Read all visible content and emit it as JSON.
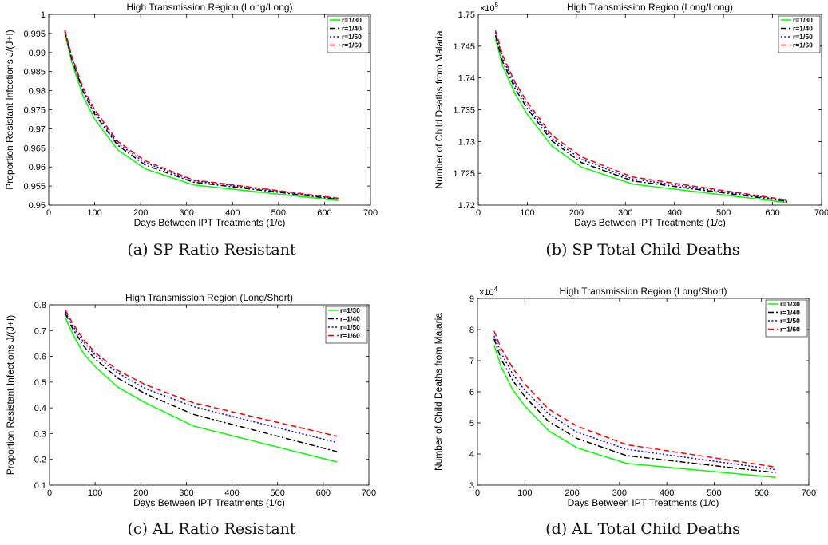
{
  "chart_data": [
    {
      "type": "line",
      "title": "High Transmission Region (Long/Long)",
      "xlabel": "Days Between IPT Treatments (1/c)",
      "ylabel": "Proportion Resistant Infections J/(J+I)",
      "xlim": [
        0,
        700
      ],
      "ylim": [
        0.95,
        1.0
      ],
      "xticks": [
        "0",
        "100",
        "200",
        "300",
        "400",
        "500",
        "600",
        "700"
      ],
      "yticks": [
        "0.95",
        "0.955",
        "0.96",
        "0.965",
        "0.97",
        "0.975",
        "0.98",
        "0.985",
        "0.99",
        "0.995",
        "1"
      ],
      "y_exponent": "",
      "legend_position": "top-right",
      "caption": "(a) SP Ratio Resistant",
      "x": [
        35,
        50,
        75,
        100,
        150,
        210,
        315,
        630
      ],
      "series": [
        {
          "name": "r=1/30",
          "color": "#00ff00",
          "dash": "solid",
          "values": [
            0.995,
            0.9875,
            0.9785,
            0.9725,
            0.9645,
            0.9595,
            0.9553,
            0.9512
          ]
        },
        {
          "name": "r=1/40",
          "color": "#000000",
          "dash": "dashdot",
          "values": [
            0.9955,
            0.9883,
            0.9797,
            0.9738,
            0.9657,
            0.9605,
            0.956,
            0.9515
          ]
        },
        {
          "name": "r=1/50",
          "color": "#0000ff",
          "dash": "dot",
          "values": [
            0.9958,
            0.9887,
            0.9801,
            0.9744,
            0.9662,
            0.9611,
            0.9564,
            0.9517
          ]
        },
        {
          "name": "r=1/60",
          "color": "#ff0000",
          "dash": "dash",
          "values": [
            0.996,
            0.9891,
            0.9807,
            0.975,
            0.9667,
            0.9616,
            0.9566,
            0.9518
          ]
        }
      ]
    },
    {
      "type": "line",
      "title": "High Transmission Region (Long/Long)",
      "xlabel": "Days Between IPT Treatments (1/c)",
      "ylabel": "Number of Child Deaths from Malaria",
      "xlim": [
        0,
        700
      ],
      "ylim": [
        1.72,
        1.75
      ],
      "xticks": [
        "0",
        "100",
        "200",
        "300",
        "400",
        "500",
        "600",
        "700"
      ],
      "yticks": [
        "1.72",
        "1.725",
        "1.73",
        "1.735",
        "1.74",
        "1.745",
        "1.75"
      ],
      "y_exponent": "×10^5",
      "legend_position": "top-right",
      "caption": "(b) SP Total Child Deaths",
      "x": [
        35,
        50,
        75,
        100,
        150,
        210,
        315,
        630
      ],
      "series": [
        {
          "name": "r=1/30",
          "color": "#00ff00",
          "dash": "solid",
          "values": [
            1.7462,
            1.7418,
            1.7375,
            1.7343,
            1.7293,
            1.726,
            1.7233,
            1.7204
          ]
        },
        {
          "name": "r=1/40",
          "color": "#000000",
          "dash": "dashdot",
          "values": [
            1.7467,
            1.7425,
            1.7383,
            1.7352,
            1.7301,
            1.7267,
            1.7238,
            1.7206
          ]
        },
        {
          "name": "r=1/50",
          "color": "#0000ff",
          "dash": "dot",
          "values": [
            1.7472,
            1.743,
            1.7388,
            1.7357,
            1.7305,
            1.7272,
            1.7241,
            1.7207
          ]
        },
        {
          "name": "r=1/60",
          "color": "#ff0000",
          "dash": "dash",
          "values": [
            1.7475,
            1.7435,
            1.7393,
            1.7362,
            1.731,
            1.7276,
            1.7244,
            1.7208
          ]
        }
      ]
    },
    {
      "type": "line",
      "title": "High Transmission Region (Long/Short)",
      "xlabel": "Days Between IPT Treatments (1/c)",
      "ylabel": "Proportion Resistant Infections J/(J+I)",
      "xlim": [
        0,
        700
      ],
      "ylim": [
        0.1,
        0.8
      ],
      "xticks": [
        "0",
        "100",
        "200",
        "300",
        "400",
        "500",
        "600",
        "700"
      ],
      "yticks": [
        "0.1",
        "0.2",
        "0.3",
        "0.4",
        "0.5",
        "0.6",
        "0.7",
        "0.8"
      ],
      "y_exponent": "",
      "legend_position": "top-right",
      "caption": "(c) AL Ratio Resistant",
      "x": [
        35,
        50,
        75,
        100,
        150,
        210,
        315,
        630
      ],
      "series": [
        {
          "name": "r=1/30",
          "color": "#00ff00",
          "dash": "solid",
          "values": [
            0.75,
            0.69,
            0.61,
            0.56,
            0.48,
            0.42,
            0.33,
            0.19
          ]
        },
        {
          "name": "r=1/40",
          "color": "#000000",
          "dash": "dashdot",
          "values": [
            0.765,
            0.71,
            0.64,
            0.59,
            0.515,
            0.455,
            0.375,
            0.23
          ]
        },
        {
          "name": "r=1/50",
          "color": "#0000ff",
          "dash": "dot",
          "values": [
            0.772,
            0.72,
            0.655,
            0.605,
            0.535,
            0.475,
            0.405,
            0.265
          ]
        },
        {
          "name": "r=1/60",
          "color": "#ff0000",
          "dash": "dash",
          "values": [
            0.78,
            0.73,
            0.665,
            0.615,
            0.545,
            0.49,
            0.42,
            0.29
          ]
        }
      ]
    },
    {
      "type": "line",
      "title": "High Transmission Region (Long/Short)",
      "xlabel": "Days Between IPT Treatments (1/c)",
      "ylabel": "Number of Child Deaths from Malaria",
      "xlim": [
        0,
        700
      ],
      "ylim": [
        3,
        9
      ],
      "xticks": [
        "0",
        "100",
        "200",
        "300",
        "400",
        "500",
        "600",
        "700"
      ],
      "yticks": [
        "3",
        "4",
        "5",
        "6",
        "7",
        "8",
        "9"
      ],
      "y_exponent": "×10^4",
      "legend_position": "top-right",
      "caption": "(d) AL Total Child Deaths",
      "x": [
        35,
        50,
        75,
        100,
        150,
        210,
        315,
        630
      ],
      "series": [
        {
          "name": "r=1/30",
          "color": "#00ff00",
          "dash": "solid",
          "values": [
            7.5,
            6.8,
            6.05,
            5.55,
            4.75,
            4.2,
            3.7,
            3.25
          ]
        },
        {
          "name": "r=1/40",
          "color": "#000000",
          "dash": "dashdot",
          "values": [
            7.7,
            7.05,
            6.35,
            5.85,
            5.05,
            4.5,
            3.95,
            3.4
          ]
        },
        {
          "name": "r=1/50",
          "color": "#0000ff",
          "dash": "dot",
          "values": [
            7.8,
            7.25,
            6.55,
            6.05,
            5.3,
            4.7,
            4.15,
            3.5
          ]
        },
        {
          "name": "r=1/60",
          "color": "#ff0000",
          "dash": "dash",
          "values": [
            7.95,
            7.4,
            6.75,
            6.25,
            5.45,
            4.9,
            4.3,
            3.58
          ]
        }
      ]
    }
  ]
}
